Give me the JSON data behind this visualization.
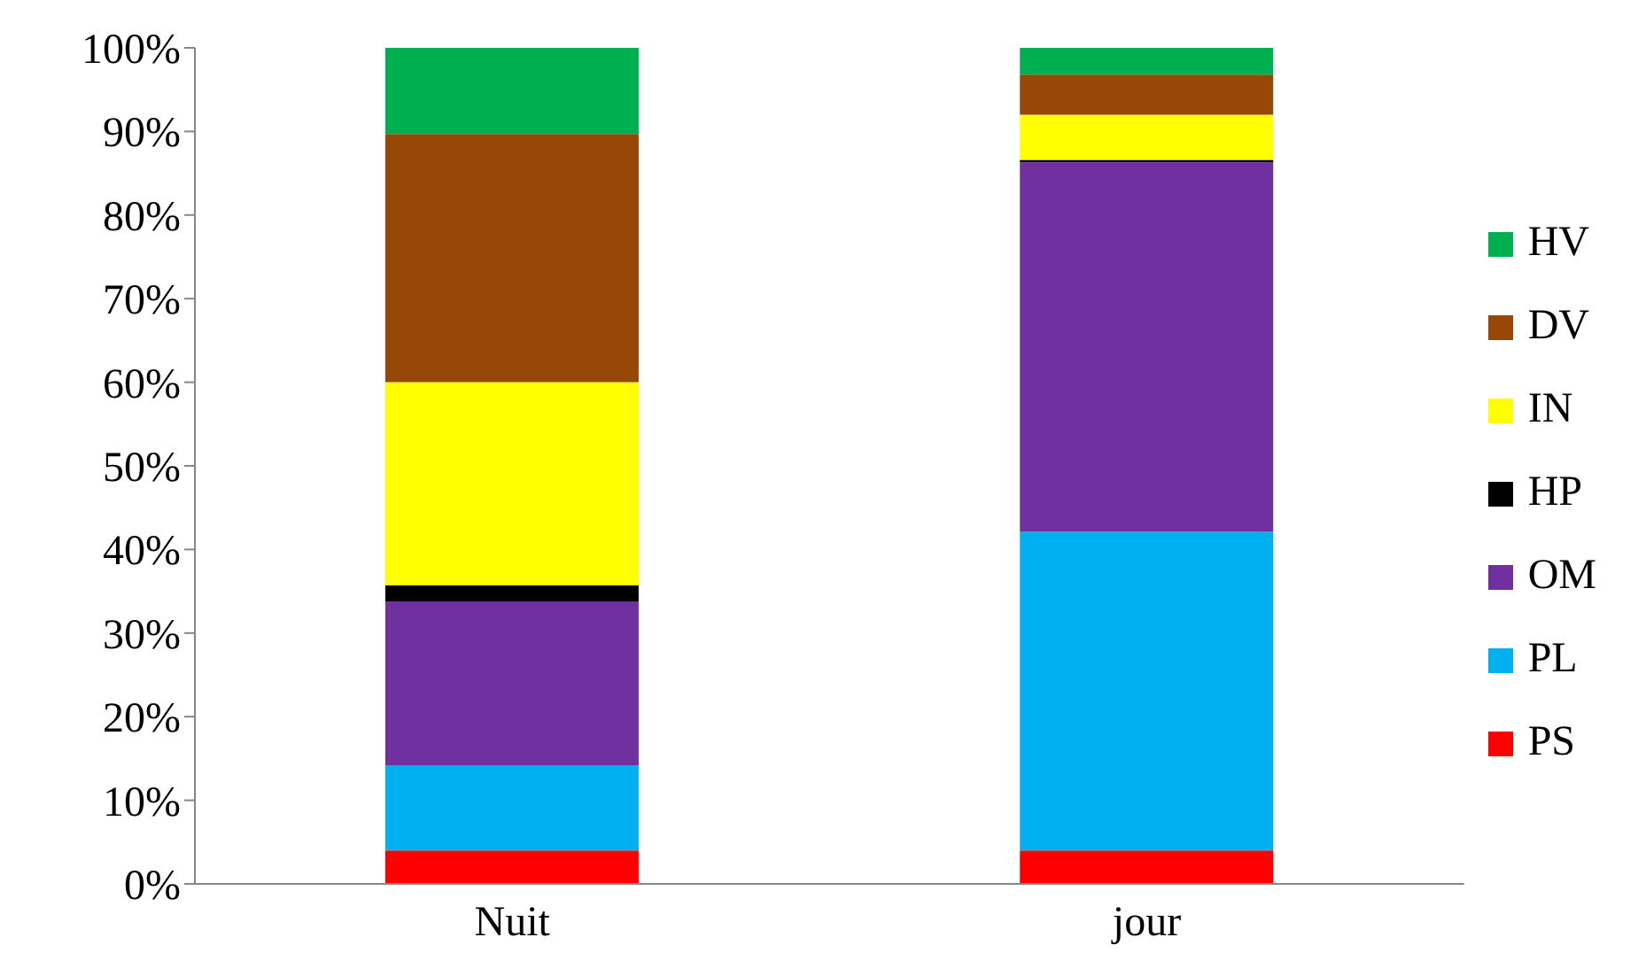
{
  "chart_data": {
    "type": "bar",
    "stacked": true,
    "categories": [
      "Nuit",
      "jour"
    ],
    "series": [
      {
        "name": "PS",
        "color": "#ff0000",
        "values": [
          4.0,
          4.0
        ]
      },
      {
        "name": "PL",
        "color": "#00b0f0",
        "values": [
          10.2,
          38.1
        ]
      },
      {
        "name": "OM",
        "color": "#7030a0",
        "values": [
          19.6,
          44.2
        ]
      },
      {
        "name": "HP",
        "color": "#000000",
        "values": [
          1.9,
          0.3
        ]
      },
      {
        "name": "IN",
        "color": "#ffff00",
        "values": [
          24.3,
          5.4
        ]
      },
      {
        "name": "DV",
        "color": "#974706",
        "values": [
          29.7,
          4.8
        ]
      },
      {
        "name": "HV",
        "color": "#00b050",
        "values": [
          10.3,
          3.2
        ]
      }
    ],
    "ylim": [
      0,
      100
    ],
    "yticks": [
      {
        "value": 0,
        "label": "0%"
      },
      {
        "value": 10,
        "label": "10%"
      },
      {
        "value": 20,
        "label": "20%"
      },
      {
        "value": 30,
        "label": "30%"
      },
      {
        "value": 40,
        "label": "40%"
      },
      {
        "value": 50,
        "label": "50%"
      },
      {
        "value": 60,
        "label": "60%"
      },
      {
        "value": 70,
        "label": "70%"
      },
      {
        "value": 80,
        "label": "80%"
      },
      {
        "value": 90,
        "label": "90%"
      },
      {
        "value": 100,
        "label": "100%"
      }
    ],
    "grid": false,
    "legend": "right"
  }
}
